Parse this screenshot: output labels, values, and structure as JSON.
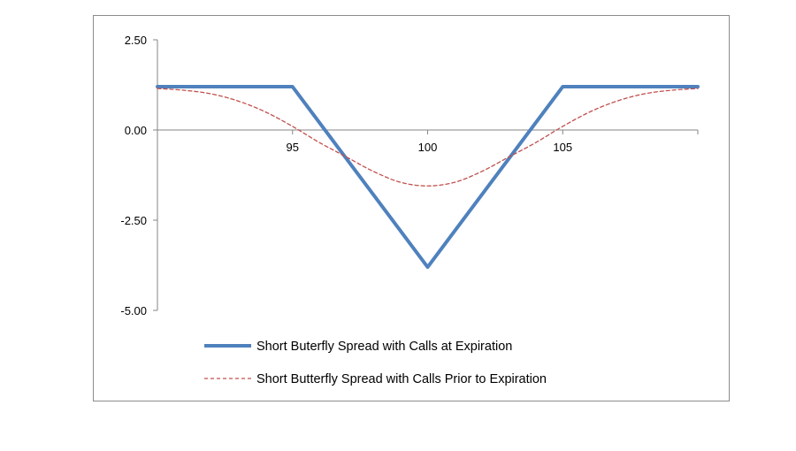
{
  "chart_data": {
    "type": "line",
    "title": "",
    "xlabel": "",
    "ylabel": "",
    "xlim": [
      90,
      110
    ],
    "ylim": [
      -5,
      2.5
    ],
    "x_ticks": [
      95,
      100,
      105
    ],
    "x_tick_labels": [
      "95",
      "100",
      "105"
    ],
    "y_ticks": [
      2.5,
      0,
      -2.5,
      -5
    ],
    "y_tick_labels": [
      "2.50",
      "0.00",
      "-2.50",
      "-5.00"
    ],
    "grid": false,
    "legend_position": "bottom",
    "series": [
      {
        "name": "Short Buterfly Spread with Calls at Expiration",
        "color": "#4f81bd",
        "style": "solid",
        "x": [
          90,
          95,
          100,
          105,
          110
        ],
        "y": [
          1.2,
          1.2,
          -3.8,
          1.2,
          1.2
        ]
      },
      {
        "name": "Short Butterfly Spread with Calls Prior to Expiration",
        "color": "#c0504d",
        "style": "dashed",
        "x": [
          90,
          91,
          92,
          93,
          94,
          95,
          96,
          97,
          98,
          99,
          100,
          101,
          102,
          103,
          104,
          105,
          106,
          107,
          108,
          109,
          110
        ],
        "y": [
          1.15,
          1.1,
          1.0,
          0.8,
          0.5,
          0.1,
          -0.35,
          -0.75,
          -1.15,
          -1.45,
          -1.55,
          -1.45,
          -1.15,
          -0.75,
          -0.35,
          0.1,
          0.5,
          0.8,
          1.0,
          1.1,
          1.15
        ]
      }
    ]
  }
}
